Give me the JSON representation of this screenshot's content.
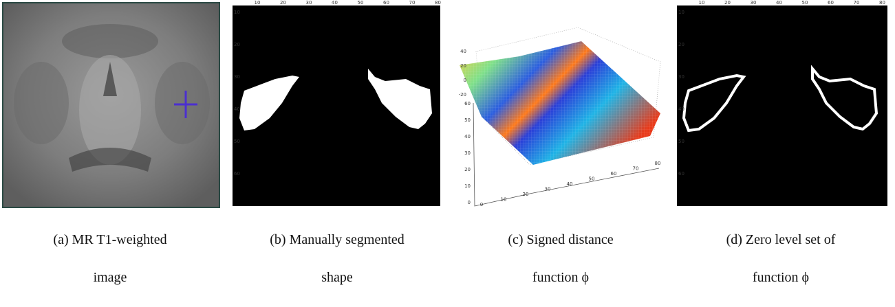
{
  "panels": [
    {
      "caption": [
        "(a) MR T1-weighted",
        "image"
      ]
    },
    {
      "caption": [
        "(b) Manually segmented",
        "shape"
      ],
      "top_ticks": [
        "10",
        "20",
        "30",
        "40",
        "50",
        "60",
        "70",
        "80"
      ],
      "left_ticks": [
        "10",
        "20",
        "30",
        "40",
        "50",
        "60"
      ]
    },
    {
      "caption": [
        "(c) Signed distance",
        "function ϕ"
      ],
      "z_ticks": [
        "40",
        "20",
        "0",
        "-20"
      ],
      "y_ticks": [
        "60",
        "50",
        "40",
        "30",
        "20",
        "10",
        "0"
      ],
      "x_ticks": [
        "0",
        "10",
        "20",
        "30",
        "40",
        "50",
        "60",
        "70",
        "80"
      ]
    },
    {
      "caption": [
        "(d) Zero level set of",
        "function ϕ"
      ],
      "top_ticks": [
        "10",
        "20",
        "30",
        "40",
        "50",
        "60",
        "70",
        "80"
      ],
      "left_ticks": [
        "10",
        "20",
        "30",
        "40",
        "50",
        "60"
      ]
    }
  ]
}
